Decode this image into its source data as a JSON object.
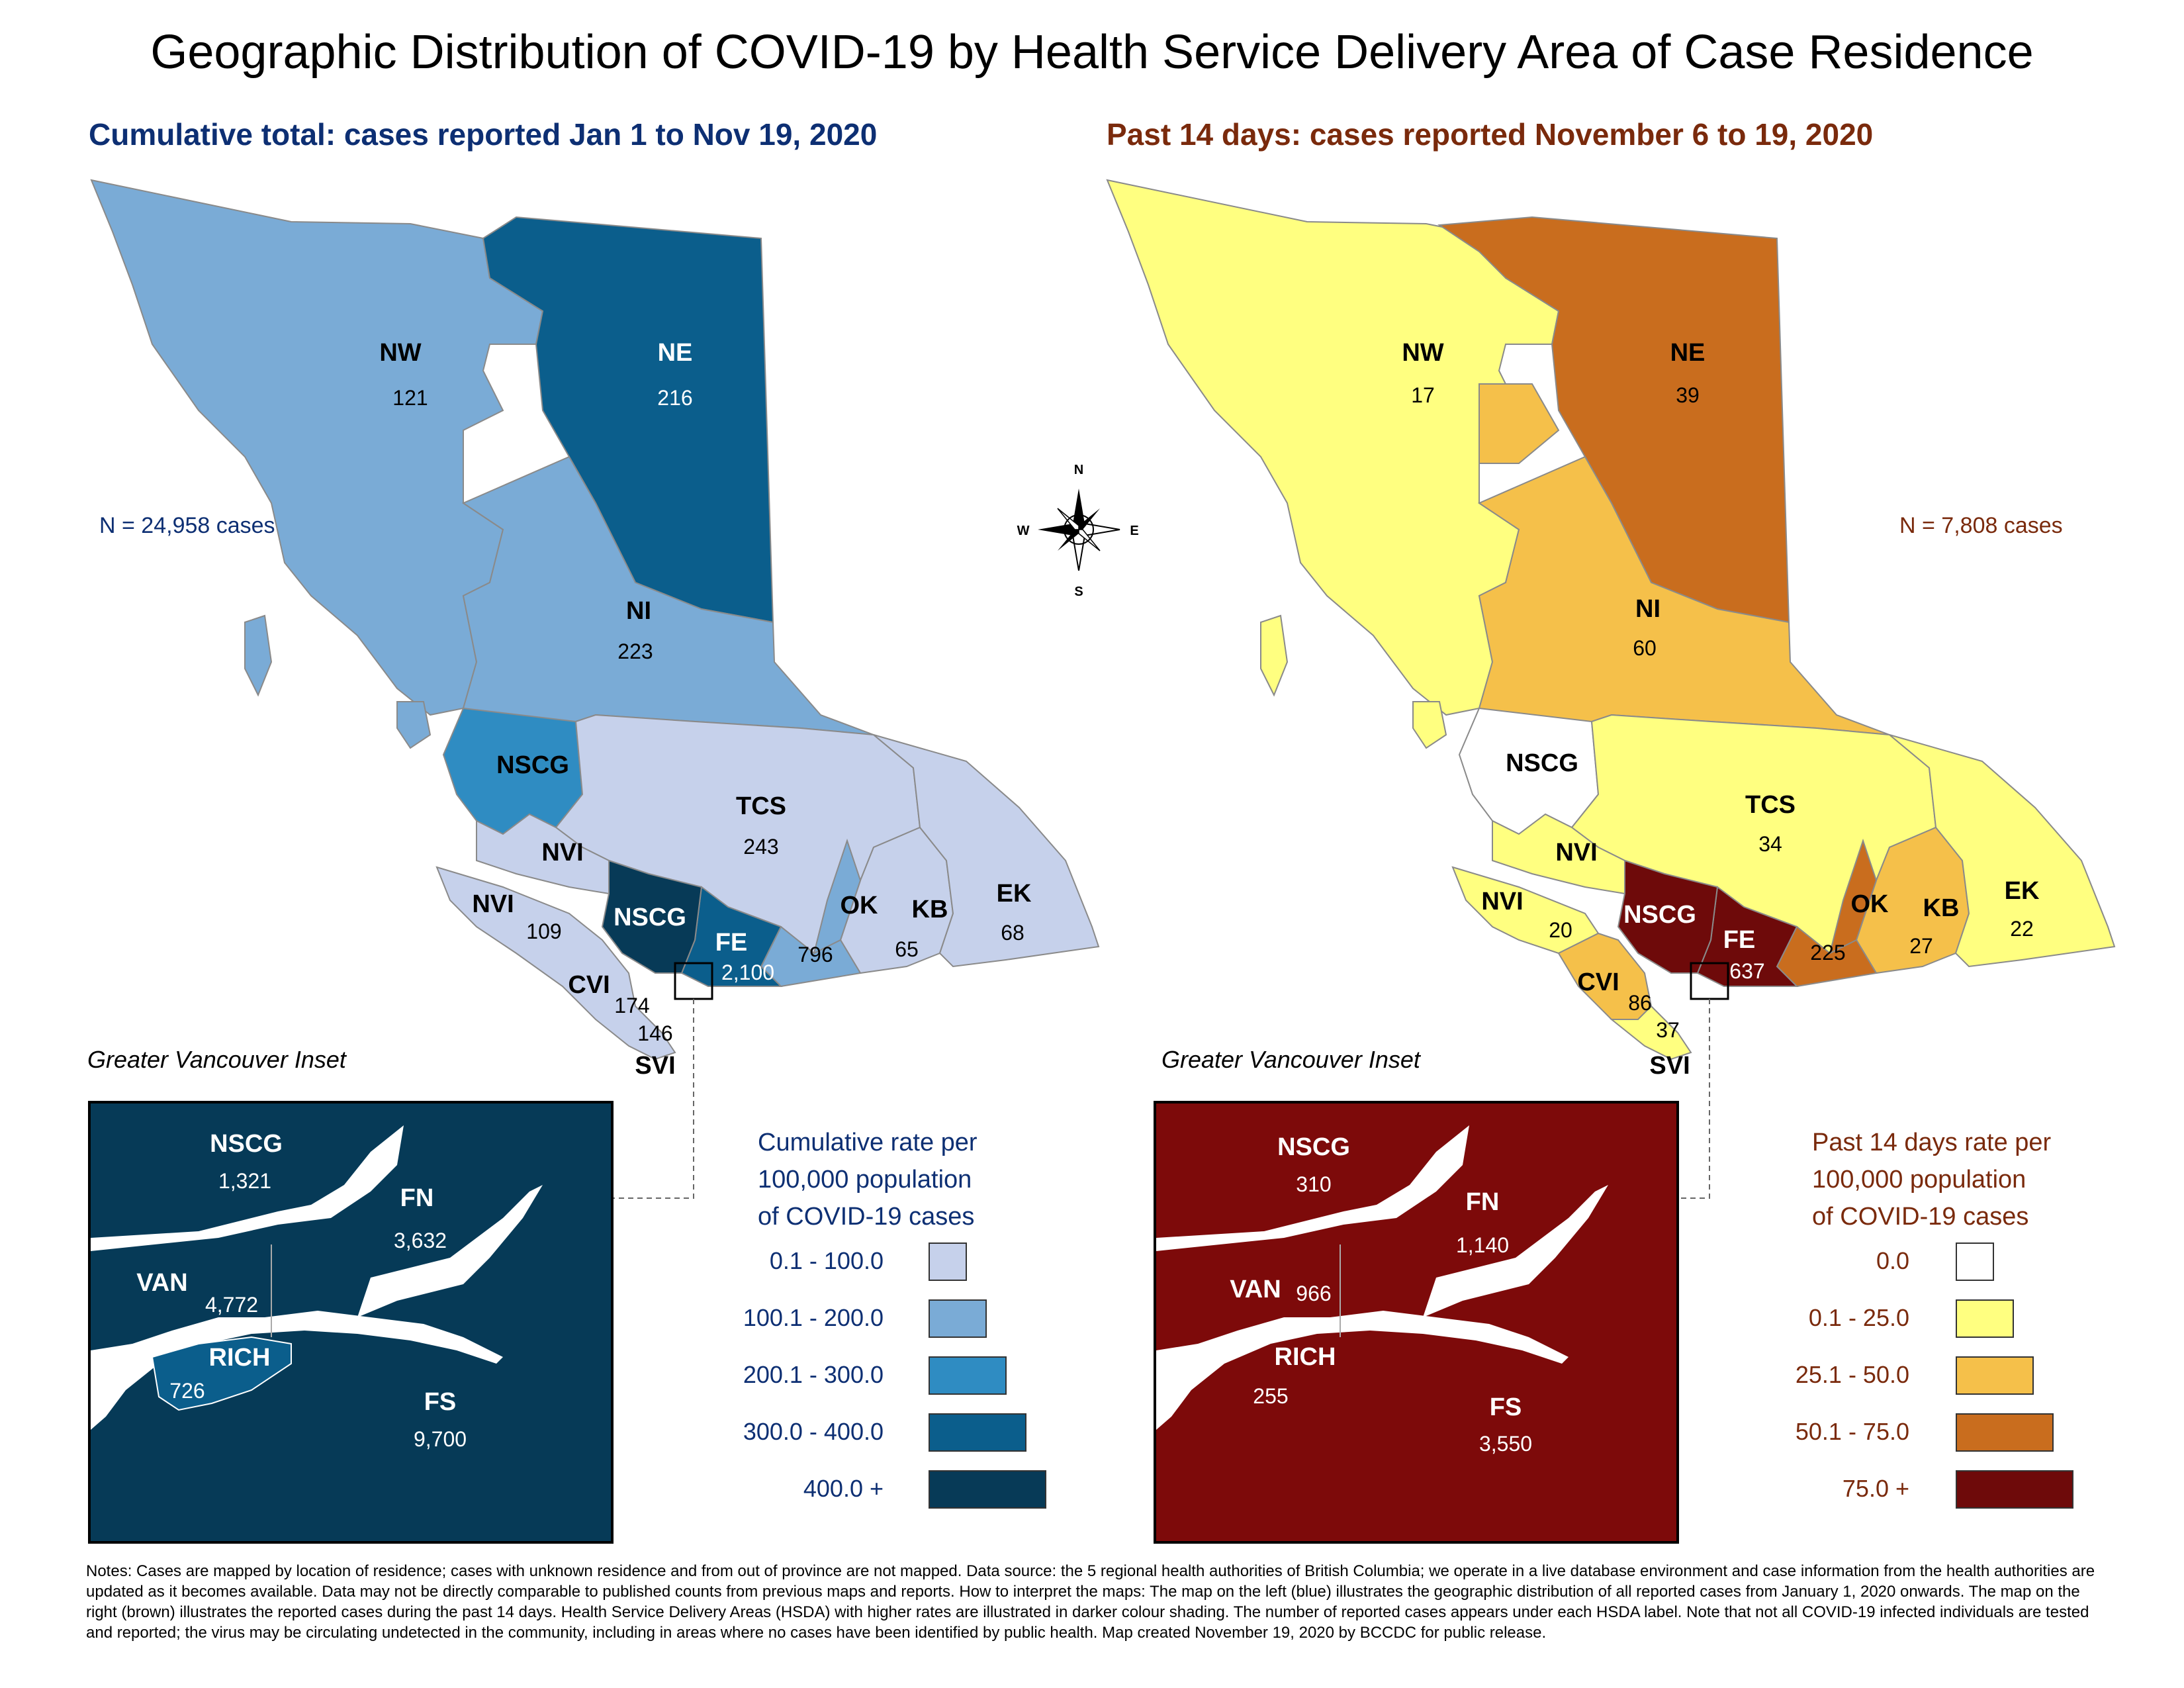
{
  "title": "Geographic Distribution of COVID-19 by Health Service Delivery Area of Case Residence",
  "left": {
    "subtitle": "Cumulative total: cases reported Jan 1 to Nov 19, 2020",
    "n_label": "N = 24,958 cases",
    "regions": {
      "NW": {
        "label": "NW",
        "value": "121"
      },
      "NE": {
        "label": "NE",
        "value": "216"
      },
      "NI": {
        "label": "NI",
        "value": "223"
      },
      "NSCG_north": {
        "label": "NSCG"
      },
      "TCS": {
        "label": "TCS",
        "value": "243"
      },
      "NVI_upper": {
        "label": "NVI"
      },
      "NVI": {
        "label": "NVI",
        "value": "109"
      },
      "NSCG": {
        "label": "NSCG"
      },
      "FE": {
        "label": "FE",
        "value": "2,100"
      },
      "OK": {
        "label": "OK",
        "value": "796"
      },
      "KB": {
        "label": "KB",
        "value": "65"
      },
      "EK": {
        "label": "EK",
        "value": "68"
      },
      "CVI": {
        "label": "CVI",
        "value": "174"
      },
      "SVI": {
        "label": "SVI",
        "value": "146"
      }
    },
    "inset": {
      "title": "Greater Vancouver Inset",
      "NSCG": {
        "label": "NSCG",
        "value": "1,321"
      },
      "FN": {
        "label": "FN",
        "value": "3,632"
      },
      "VAN": {
        "label": "VAN",
        "value": "4,772"
      },
      "RICH": {
        "label": "RICH",
        "value": "726"
      },
      "FS": {
        "label": "FS",
        "value": "9,700"
      }
    },
    "legend": {
      "title": [
        "Cumulative rate per",
        "100,000 population",
        "of COVID-19 cases"
      ],
      "items": [
        {
          "label": "0.1 - 100.0",
          "color": "#c6d1eb"
        },
        {
          "label": "100.1 - 200.0",
          "color": "#7aabd6"
        },
        {
          "label": "200.1 - 300.0",
          "color": "#2f8cc2"
        },
        {
          "label": "300.0 - 400.0",
          "color": "#0b5e8c"
        },
        {
          "label": "400.0 +",
          "color": "#073a57"
        }
      ]
    }
  },
  "right": {
    "subtitle": "Past 14 days: cases reported November 6 to 19, 2020",
    "n_label": "N = 7,808 cases",
    "regions": {
      "NW": {
        "label": "NW",
        "value": "17"
      },
      "NE": {
        "label": "NE",
        "value": "39"
      },
      "NI": {
        "label": "NI",
        "value": "60"
      },
      "NSCG_north": {
        "label": "NSCG"
      },
      "TCS": {
        "label": "TCS",
        "value": "34"
      },
      "NVI_upper": {
        "label": "NVI"
      },
      "NVI": {
        "label": "NVI",
        "value": "20"
      },
      "NSCG": {
        "label": "NSCG"
      },
      "FE": {
        "label": "FE",
        "value": "637"
      },
      "OK": {
        "label": "OK",
        "value": "225"
      },
      "KB": {
        "label": "KB",
        "value": "27"
      },
      "EK": {
        "label": "EK",
        "value": "22"
      },
      "CVI": {
        "label": "CVI",
        "value": "86"
      },
      "SVI": {
        "label": "SVI",
        "value": "37"
      }
    },
    "inset": {
      "title": "Greater Vancouver Inset",
      "NSCG": {
        "label": "NSCG",
        "value": "310"
      },
      "FN": {
        "label": "FN",
        "value": "1,140"
      },
      "VAN": {
        "label": "VAN",
        "value": "966"
      },
      "RICH": {
        "label": "RICH",
        "value": "255"
      },
      "FS": {
        "label": "FS",
        "value": "3,550"
      }
    },
    "legend": {
      "title": [
        "Past 14 days rate per",
        "100,000 population",
        "of COVID-19 cases"
      ],
      "items": [
        {
          "label": "0.0",
          "color": "#ffffff"
        },
        {
          "label": "0.1 - 25.0",
          "color": "#ffff80"
        },
        {
          "label": "25.1 - 50.0",
          "color": "#f5c04a"
        },
        {
          "label": "50.1 - 75.0",
          "color": "#c96d1e"
        },
        {
          "label": "75.0 +",
          "color": "#6e0a0a"
        }
      ]
    }
  },
  "compass": {
    "n": "N",
    "s": "S",
    "e": "E",
    "w": "W",
    "icon": "compass-rose-icon"
  },
  "notes": "Notes: Cases are mapped by location of residence; cases with unknown residence and from out of province are not mapped. Data source: the 5 regional health authorities of British Columbia; we operate in a live database environment and case information from the health authorities are updated as it becomes available. Data may not be directly comparable to published counts from previous maps and reports. How to interpret the maps: The map on the left (blue) illustrates the geographic distribution of all reported cases from January 1, 2020 onwards. The map on the right (brown) illustrates the reported cases during the past 14 days. Health Service Delivery Areas (HSDA) with higher rates are illustrated in darker colour shading. The number of reported cases appears under each HSDA label. Note that not all COVID-19 infected individuals are tested and reported; the virus may be circulating undetected in the community, including in areas where no cases have been identified by public health. Map created November 19, 2020 by BCCDC for public release."
}
